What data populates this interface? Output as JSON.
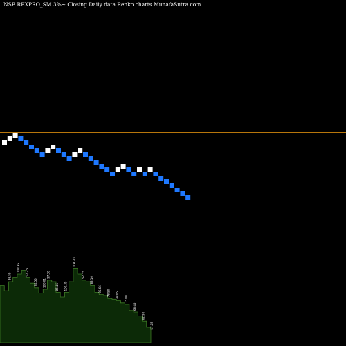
{
  "title": "NSE REXPRO_SM 3%~  Closing Daily data  Renko  charts MunafaSutra.com",
  "chart_data": [
    {
      "type": "renko",
      "title": "NSE REXPRO_SM 3%~  Closing Daily data  Renko  charts MunafaSutra.com",
      "brick_size": "3%",
      "colors": {
        "up": "#ffffff",
        "down": "#1e78ff",
        "reference_lines": "#b8760b"
      },
      "reference_levels": [
        1.0,
        0.72
      ],
      "bricks": [
        {
          "level": 0.0,
          "dir": "up"
        },
        {
          "level": 0.06,
          "dir": "up"
        },
        {
          "level": 0.11,
          "dir": "up"
        },
        {
          "level": 0.06,
          "dir": "down"
        },
        {
          "level": 0.0,
          "dir": "down"
        },
        {
          "level": -0.06,
          "dir": "down"
        },
        {
          "level": -0.11,
          "dir": "down"
        },
        {
          "level": -0.17,
          "dir": "down"
        },
        {
          "level": -0.11,
          "dir": "up"
        },
        {
          "level": -0.06,
          "dir": "up"
        },
        {
          "level": -0.11,
          "dir": "down"
        },
        {
          "level": -0.17,
          "dir": "down"
        },
        {
          "level": -0.22,
          "dir": "down"
        },
        {
          "level": -0.17,
          "dir": "up"
        },
        {
          "level": -0.11,
          "dir": "up"
        },
        {
          "level": -0.17,
          "dir": "down"
        },
        {
          "level": -0.22,
          "dir": "down"
        },
        {
          "level": -0.28,
          "dir": "down"
        },
        {
          "level": -0.34,
          "dir": "down"
        },
        {
          "level": -0.39,
          "dir": "down"
        },
        {
          "level": -0.45,
          "dir": "down"
        },
        {
          "level": -0.39,
          "dir": "up"
        },
        {
          "level": -0.34,
          "dir": "up"
        },
        {
          "level": -0.39,
          "dir": "down"
        },
        {
          "level": -0.45,
          "dir": "down"
        },
        {
          "level": -0.39,
          "dir": "up"
        },
        {
          "level": -0.45,
          "dir": "down"
        },
        {
          "level": -0.39,
          "dir": "up"
        },
        {
          "level": -0.45,
          "dir": "down"
        },
        {
          "level": -0.51,
          "dir": "down"
        },
        {
          "level": -0.56,
          "dir": "down"
        },
        {
          "level": -0.62,
          "dir": "down"
        },
        {
          "level": -0.68,
          "dir": "down"
        },
        {
          "level": -0.73,
          "dir": "down"
        },
        {
          "level": -0.79,
          "dir": "down"
        }
      ]
    },
    {
      "type": "area",
      "colors": {
        "fill": "#0c2a07",
        "line": "#3d7a25"
      },
      "ylim": [
        0,
        1
      ],
      "values": [
        0.75,
        0.68,
        0.8,
        0.85,
        0.9,
        0.95,
        0.85,
        0.78,
        0.72,
        0.65,
        0.7,
        0.82,
        0.8,
        0.66,
        0.6,
        0.66,
        0.8,
        0.97,
        0.9,
        0.82,
        0.8,
        0.75,
        0.66,
        0.63,
        0.62,
        0.58,
        0.57,
        0.55,
        0.52,
        0.5,
        0.42,
        0.4,
        0.35,
        0.28,
        0.2,
        0.15
      ],
      "labels": [
        "",
        "",
        "86.59",
        "",
        "108.95",
        "",
        "92.25",
        "",
        "86.55",
        "",
        "100.01",
        "97.30",
        "",
        "86.15",
        "",
        "100.35",
        "",
        "108.30",
        "",
        "92.35",
        "",
        "88.10",
        "",
        "85.66",
        "",
        "78.50",
        "",
        "78.05",
        "",
        "75.00",
        "",
        "68.45",
        "",
        "62.90",
        "",
        "57.55"
      ]
    }
  ]
}
